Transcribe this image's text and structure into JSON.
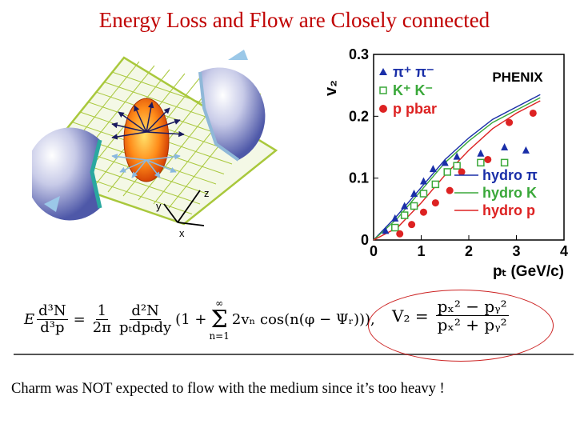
{
  "title": "Energy Loss and Flow are Closely connected",
  "diagram": {
    "axis_labels": {
      "y": "y",
      "z": "z",
      "x": "x"
    }
  },
  "chart_data": {
    "type": "scatter",
    "experiment": "PHENIX",
    "ylabel": "v₂",
    "xlabel": "pₜ (GeV/c)",
    "xlim": [
      0,
      4
    ],
    "ylim": [
      0,
      0.3
    ],
    "xticks": [
      "0",
      "1",
      "2",
      "3",
      "4"
    ],
    "yticks": [
      "0",
      "0.1",
      "0.2",
      "0.3"
    ],
    "series": [
      {
        "name": "π⁺ π⁻",
        "marker": "triangle",
        "color": "#1a2fa8",
        "points": [
          [
            0.25,
            0.015
          ],
          [
            0.45,
            0.035
          ],
          [
            0.65,
            0.055
          ],
          [
            0.85,
            0.075
          ],
          [
            1.05,
            0.095
          ],
          [
            1.25,
            0.115
          ],
          [
            1.5,
            0.125
          ],
          [
            1.75,
            0.135
          ],
          [
            2.25,
            0.14
          ],
          [
            2.75,
            0.15
          ],
          [
            3.2,
            0.145
          ]
        ]
      },
      {
        "name": "K⁺ K⁻",
        "marker": "square",
        "color": "#3aa83a",
        "points": [
          [
            0.45,
            0.02
          ],
          [
            0.65,
            0.04
          ],
          [
            0.85,
            0.055
          ],
          [
            1.05,
            0.075
          ],
          [
            1.3,
            0.09
          ],
          [
            1.55,
            0.11
          ],
          [
            1.75,
            0.12
          ],
          [
            2.25,
            0.125
          ],
          [
            2.75,
            0.125
          ]
        ]
      },
      {
        "name": "p pbar",
        "marker": "circle",
        "color": "#dd2222",
        "points": [
          [
            0.55,
            0.01
          ],
          [
            0.8,
            0.025
          ],
          [
            1.05,
            0.045
          ],
          [
            1.3,
            0.06
          ],
          [
            1.6,
            0.08
          ],
          [
            1.85,
            0.11
          ],
          [
            2.4,
            0.13
          ],
          [
            2.85,
            0.19
          ],
          [
            3.35,
            0.205
          ]
        ]
      },
      {
        "name": "hydro π",
        "line": true,
        "color": "#1a2fa8",
        "points": [
          [
            0,
            0
          ],
          [
            0.5,
            0.04
          ],
          [
            1,
            0.085
          ],
          [
            1.5,
            0.13
          ],
          [
            2,
            0.165
          ],
          [
            2.5,
            0.195
          ],
          [
            3,
            0.215
          ],
          [
            3.5,
            0.235
          ]
        ]
      },
      {
        "name": "hydro K",
        "line": true,
        "color": "#3aa83a",
        "points": [
          [
            0,
            0
          ],
          [
            0.5,
            0.035
          ],
          [
            1,
            0.08
          ],
          [
            1.5,
            0.125
          ],
          [
            2,
            0.16
          ],
          [
            2.5,
            0.19
          ],
          [
            3,
            0.21
          ],
          [
            3.5,
            0.23
          ]
        ]
      },
      {
        "name": "hydro p",
        "line": true,
        "color": "#dd2222",
        "points": [
          [
            0,
            0
          ],
          [
            0.5,
            0.02
          ],
          [
            1,
            0.06
          ],
          [
            1.5,
            0.105
          ],
          [
            2,
            0.145
          ],
          [
            2.5,
            0.18
          ],
          [
            3,
            0.205
          ],
          [
            3.5,
            0.225
          ]
        ]
      }
    ]
  },
  "equations": {
    "left": {
      "lhs_num": "d³N",
      "lhs_den": "d³p",
      "E": "E",
      "eq": "=",
      "c_num": "1",
      "c_den": "2π",
      "d_num": "d²N",
      "d_den": "pₜdpₜdy",
      "open": "(1 +",
      "sum_top": "∞",
      "sum_bot": "n=1",
      "term": "2vₙ cos(n(φ − Ψᵣ)))",
      "comma": ","
    },
    "right": {
      "lhs": "V₂ =",
      "num": "pₓ² − pᵧ²",
      "den": "pₓ² + pᵧ²"
    }
  },
  "bottom_text": "Charm was NOT expected to flow with the medium since it’s too heavy !"
}
